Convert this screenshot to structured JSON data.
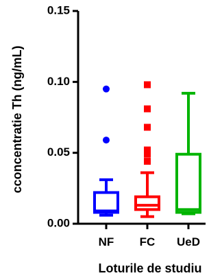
{
  "chart_data": {
    "type": "box",
    "ylabel": "cconcentratie Th (ng/mL)",
    "xlabel": "Loturile de studiu",
    "ylim": [
      0,
      0.15
    ],
    "yticks": [
      0.0,
      0.05,
      0.1,
      0.15
    ],
    "ytick_labels": [
      "0.00",
      "0.05",
      "0.10",
      "0.15"
    ],
    "categories": [
      "NF",
      "FC",
      "UeD"
    ],
    "groups": [
      {
        "category": "NF",
        "color": "#0000ff",
        "whisker_low": 0.006,
        "q1": 0.008,
        "median": 0.009,
        "q3": 0.022,
        "whisker_high": 0.031,
        "outliers": [
          0.059,
          0.095
        ],
        "outlier_shape": "circle"
      },
      {
        "category": "FC",
        "color": "#ff0000",
        "whisker_low": 0.005,
        "q1": 0.01,
        "median": 0.013,
        "q3": 0.019,
        "whisker_high": 0.036,
        "outliers": [
          0.044,
          0.049,
          0.052,
          0.068,
          0.081,
          0.098
        ],
        "outlier_shape": "square"
      },
      {
        "category": "UeD",
        "color": "#00b400",
        "whisker_low": 0.007,
        "q1": 0.008,
        "median": 0.01,
        "q3": 0.049,
        "whisker_high": 0.092,
        "outliers": [],
        "outlier_shape": "none"
      }
    ]
  }
}
